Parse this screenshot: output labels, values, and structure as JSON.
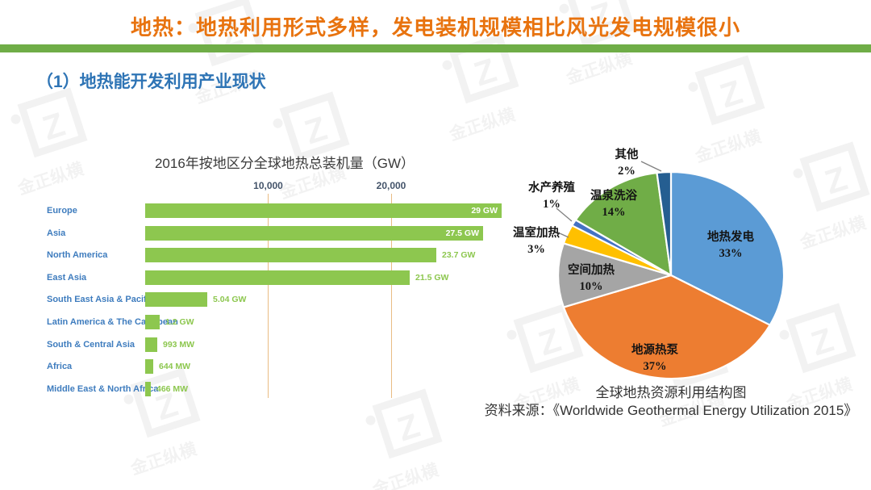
{
  "slide": {
    "title": "地热：地热利用形式多样，发电装机规模相比风光发电规模很小",
    "section_heading": "（1）地热能开发利用产业现状",
    "accent_colors": {
      "title_orange": "#E8730F",
      "divider_green": "#6FAD47",
      "heading_blue": "#2E74B5",
      "gridline_tan": "#E9BC83"
    }
  },
  "chart_data": [
    {
      "type": "bar",
      "orientation": "horizontal",
      "title": "2016年按地区分全球地热总装机量（GW）",
      "unit": "MW",
      "categories": [
        "Europe",
        "Asia",
        "North America",
        "East Asia",
        "South East Asia & Pacific",
        "Latin America & The Caribbean",
        "South & Central Asia",
        "Africa",
        "Middle East & North Africa"
      ],
      "values": [
        29000,
        27500,
        23700,
        21500,
        5040,
        1200,
        993,
        644,
        466
      ],
      "value_labels": [
        "29 GW",
        "27.5 GW",
        "23.7 GW",
        "21.5 GW",
        "5.04 GW",
        "1.2 GW",
        "993 MW",
        "644 MW",
        "466 MW"
      ],
      "x_ticks": [
        {
          "label": "10,000",
          "value": 10000
        },
        {
          "label": "20,000",
          "value": 20000
        }
      ],
      "xlim": [
        0,
        30000
      ],
      "grid": true,
      "bar_color": "#8DC74F",
      "category_label_color": "#3E7CBE",
      "legend_position": "none"
    },
    {
      "type": "pie",
      "title": "全球地热资源利用结构图",
      "start_angle_deg": 0,
      "direction": "clockwise",
      "legend_position": "labels-around-pie",
      "slices": [
        {
          "label": "地热发电",
          "pct": 33,
          "pct_label": "33%",
          "color": "#5B9BD5"
        },
        {
          "label": "地源热泵",
          "pct": 37,
          "pct_label": "37%",
          "color": "#ED7D31"
        },
        {
          "label": "空间加热",
          "pct": 10,
          "pct_label": "10%",
          "color": "#A5A5A5"
        },
        {
          "label": "温室加热",
          "pct": 3,
          "pct_label": "3%",
          "color": "#FFC000"
        },
        {
          "label": "水产养殖",
          "pct": 1,
          "pct_label": "1%",
          "color": "#4472C4"
        },
        {
          "label": "温泉洗浴",
          "pct": 14,
          "pct_label": "14%",
          "color": "#70AD47"
        },
        {
          "label": "其他",
          "pct": 2,
          "pct_label": "2%",
          "color": "#255E91"
        }
      ]
    }
  ],
  "source_line": "资料来源：《Worldwide Geothermal Energy Utilization 2015》",
  "watermark": {
    "logo_text": "Z",
    "brand_text": "金正纵横"
  }
}
